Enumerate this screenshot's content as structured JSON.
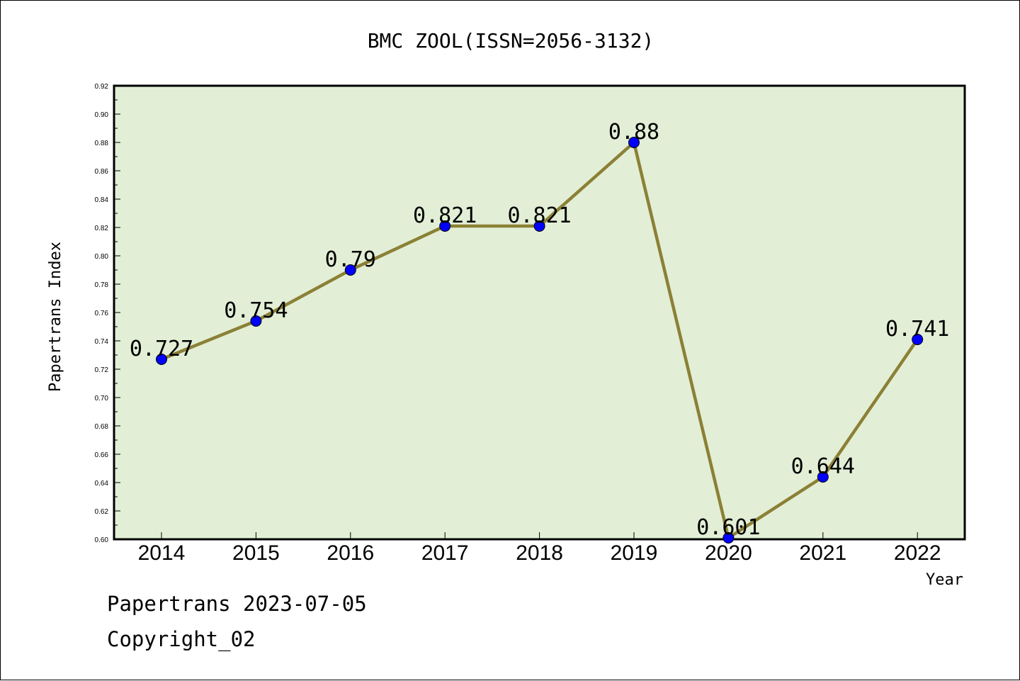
{
  "chart_data": {
    "type": "line",
    "title": "BMC ZOOL(ISSN=2056-3132)",
    "xlabel": "Year",
    "ylabel": "Papertrans Index",
    "categories": [
      "2014",
      "2015",
      "2016",
      "2017",
      "2018",
      "2019",
      "2020",
      "2021",
      "2022"
    ],
    "values": [
      0.727,
      0.754,
      0.79,
      0.821,
      0.821,
      0.88,
      0.601,
      0.644,
      0.741
    ],
    "data_labels": [
      "0.727",
      "0.754",
      "0.79",
      "0.821",
      "0.821",
      "0.88",
      "0.601",
      "0.644",
      "0.741"
    ],
    "ylim": [
      0.6,
      0.92
    ],
    "yticks": [
      "0.60",
      "0.62",
      "0.64",
      "0.66",
      "0.68",
      "0.70",
      "0.72",
      "0.74",
      "0.76",
      "0.78",
      "0.80",
      "0.82",
      "0.84",
      "0.86",
      "0.88",
      "0.90",
      "0.92"
    ],
    "grid": false,
    "colors": {
      "plot_background": "#e2efd6",
      "line": "#8b8035",
      "marker": "#0000ff"
    }
  },
  "footer": {
    "date_line": "Papertrans 2023-07-05",
    "copyright_line": "Copyright_02"
  }
}
